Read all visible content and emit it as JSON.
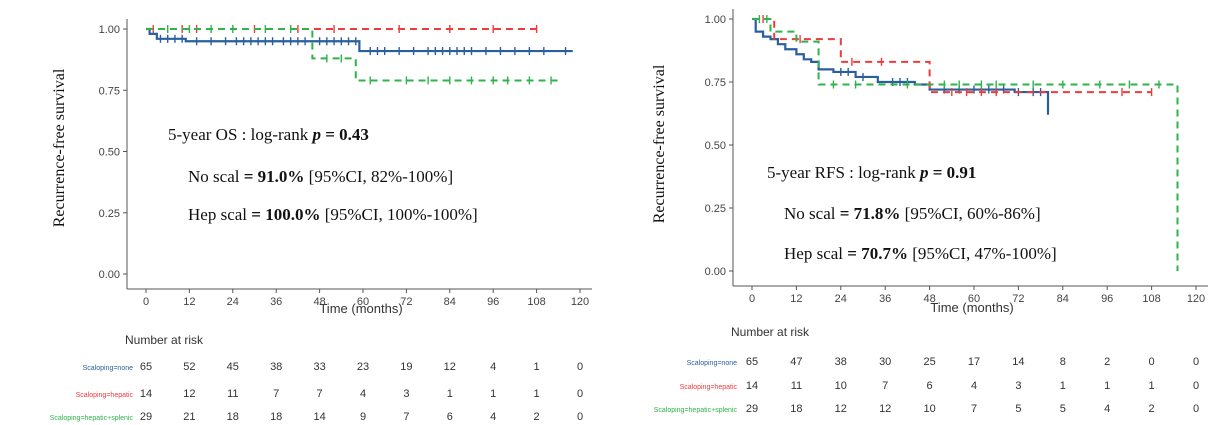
{
  "chart_data": [
    {
      "type": "line",
      "subtype": "kaplan-meier",
      "ylabel": "Recurrence-free survival",
      "xlabel": "Time (months)",
      "xlim": [
        0,
        120
      ],
      "ylim": [
        0,
        1
      ],
      "xticks": [
        "0",
        "12",
        "24",
        "36",
        "48",
        "60",
        "72",
        "84",
        "96",
        "108",
        "120"
      ],
      "yticks": [
        "0.00",
        "0.25",
        "0.50",
        "0.75",
        "1.00"
      ],
      "grid": false,
      "legend": "none",
      "annotations": {
        "test_prefix": "5-year OS : log-rank ",
        "p_symbol": "p",
        "p_value": " = 0.43",
        "line1_name": "No scal ",
        "line1_value": "= 91.0%",
        "line1_ci": " [95%CI, 82%-100%]",
        "line2_name": "Hep scal ",
        "line2_value": "= 100.0%",
        "line2_ci": " [95%CI, 100%-100%]"
      },
      "series": [
        {
          "color": "#2a5f9e",
          "dash": "solid",
          "steps": [
            [
              0,
              1.0
            ],
            [
              1,
              0.98
            ],
            [
              3,
              0.96
            ],
            [
              11,
              0.95
            ],
            [
              46,
              0.95
            ],
            [
              59,
              0.91
            ],
            [
              118,
              0.91
            ]
          ],
          "censor": [
            4,
            6,
            8,
            10,
            14,
            18,
            22,
            25,
            27,
            29,
            31,
            33,
            35,
            38,
            40,
            42,
            44,
            48,
            50,
            52,
            54,
            56,
            58,
            62,
            64,
            66,
            70,
            74,
            78,
            80,
            82,
            84,
            86,
            88,
            90,
            94,
            98,
            102,
            106,
            110,
            116
          ]
        },
        {
          "color": "#ee3b3b",
          "dash": "dashed",
          "steps": [
            [
              0,
              1.0
            ],
            [
              108,
              1.0
            ]
          ],
          "censor": [
            2,
            10,
            14,
            30,
            42,
            52,
            70,
            84,
            96,
            108
          ]
        },
        {
          "color": "#2fb34a",
          "dash": "dashed",
          "steps": [
            [
              0,
              1.0
            ],
            [
              46,
              1.0
            ],
            [
              46,
              0.88
            ],
            [
              58,
              0.88
            ],
            [
              58,
              0.79
            ],
            [
              115,
              0.79
            ]
          ],
          "censor": [
            6,
            12,
            18,
            24,
            33,
            40,
            50,
            54,
            62,
            72,
            78,
            84,
            90,
            96,
            100,
            106,
            112
          ]
        }
      ],
      "risk_table": {
        "title": "Number at risk",
        "rows": [
          {
            "label": "Scaloping=none",
            "color": "#2a5f9e",
            "values": [
              "65",
              "52",
              "45",
              "38",
              "33",
              "23",
              "19",
              "12",
              "4",
              "1",
              "0"
            ]
          },
          {
            "label": "Scaloping=hepatic",
            "color": "#ee3b3b",
            "values": [
              "14",
              "12",
              "11",
              "7",
              "7",
              "4",
              "3",
              "1",
              "1",
              "1",
              "0"
            ]
          },
          {
            "label": "Scaloping=hepatic+splenic",
            "color": "#2fb34a",
            "values": [
              "29",
              "21",
              "18",
              "18",
              "14",
              "9",
              "7",
              "6",
              "4",
              "2",
              "0"
            ]
          }
        ]
      }
    },
    {
      "type": "line",
      "subtype": "kaplan-meier",
      "ylabel": "Recurrence-free survival",
      "xlabel": "Time (months)",
      "xlim": [
        0,
        120
      ],
      "ylim": [
        0,
        1
      ],
      "xticks": [
        "0",
        "12",
        "24",
        "36",
        "48",
        "60",
        "72",
        "84",
        "96",
        "108",
        "120"
      ],
      "yticks": [
        "0.00",
        "0.25",
        "0.50",
        "0.75",
        "1.00"
      ],
      "grid": false,
      "legend": "none",
      "annotations": {
        "test_prefix": "5-year RFS : log-rank ",
        "p_symbol": "p",
        "p_value": " = 0.91",
        "line1_name": "No scal ",
        "line1_value": "= 71.8%",
        "line1_ci": " [95%CI, 60%-86%]",
        "line2_name": "Hep scal ",
        "line2_value": "= 70.7%",
        "line2_ci": " [95%CI, 47%-100%]"
      },
      "series": [
        {
          "color": "#2a5f9e",
          "dash": "solid",
          "steps": [
            [
              0,
              1.0
            ],
            [
              1,
              0.95
            ],
            [
              3,
              0.93
            ],
            [
              5,
              0.92
            ],
            [
              7,
              0.9
            ],
            [
              9,
              0.88
            ],
            [
              12,
              0.86
            ],
            [
              14,
              0.84
            ],
            [
              16,
              0.83
            ],
            [
              18,
              0.8
            ],
            [
              22,
              0.79
            ],
            [
              28,
              0.77
            ],
            [
              34,
              0.75
            ],
            [
              44,
              0.74
            ],
            [
              48,
              0.72
            ],
            [
              66,
              0.72
            ],
            [
              71,
              0.71
            ],
            [
              80,
              0.71
            ],
            [
              80,
              0.62
            ]
          ],
          "censor": [
            24,
            26,
            30,
            38,
            40,
            42,
            52,
            56,
            60,
            64,
            68,
            72,
            76,
            78
          ]
        },
        {
          "color": "#ee3b3b",
          "dash": "dashed",
          "steps": [
            [
              0,
              1.0
            ],
            [
              6,
              1.0
            ],
            [
              6,
              0.92
            ],
            [
              24,
              0.92
            ],
            [
              24,
              0.83
            ],
            [
              48,
              0.83
            ],
            [
              48,
              0.71
            ],
            [
              108,
              0.71
            ]
          ],
          "censor": [
            3,
            13,
            27,
            35,
            54,
            58,
            62,
            66,
            100,
            108
          ]
        },
        {
          "color": "#2fb34a",
          "dash": "dashed",
          "steps": [
            [
              0,
              1.0
            ],
            [
              5,
              0.95
            ],
            [
              12,
              0.91
            ],
            [
              18,
              0.91
            ],
            [
              18,
              0.74
            ],
            [
              115,
              0.74
            ],
            [
              115,
              0.0
            ]
          ],
          "censor": [
            2,
            4,
            22,
            28,
            42,
            52,
            56,
            62,
            66,
            76,
            84,
            94,
            102,
            110
          ]
        }
      ],
      "risk_table": {
        "title": "Number at risk",
        "rows": [
          {
            "label": "Scaloping=none",
            "color": "#2a5f9e",
            "values": [
              "65",
              "47",
              "38",
              "30",
              "25",
              "17",
              "14",
              "8",
              "2",
              "0",
              "0"
            ]
          },
          {
            "label": "Scaloping=hepatic",
            "color": "#ee3b3b",
            "values": [
              "14",
              "11",
              "10",
              "7",
              "6",
              "4",
              "3",
              "1",
              "1",
              "1",
              "0"
            ]
          },
          {
            "label": "Scaloping=hepatic+splenic",
            "color": "#2fb34a",
            "values": [
              "29",
              "18",
              "12",
              "12",
              "10",
              "7",
              "5",
              "5",
              "4",
              "2",
              "0"
            ]
          }
        ]
      }
    }
  ]
}
